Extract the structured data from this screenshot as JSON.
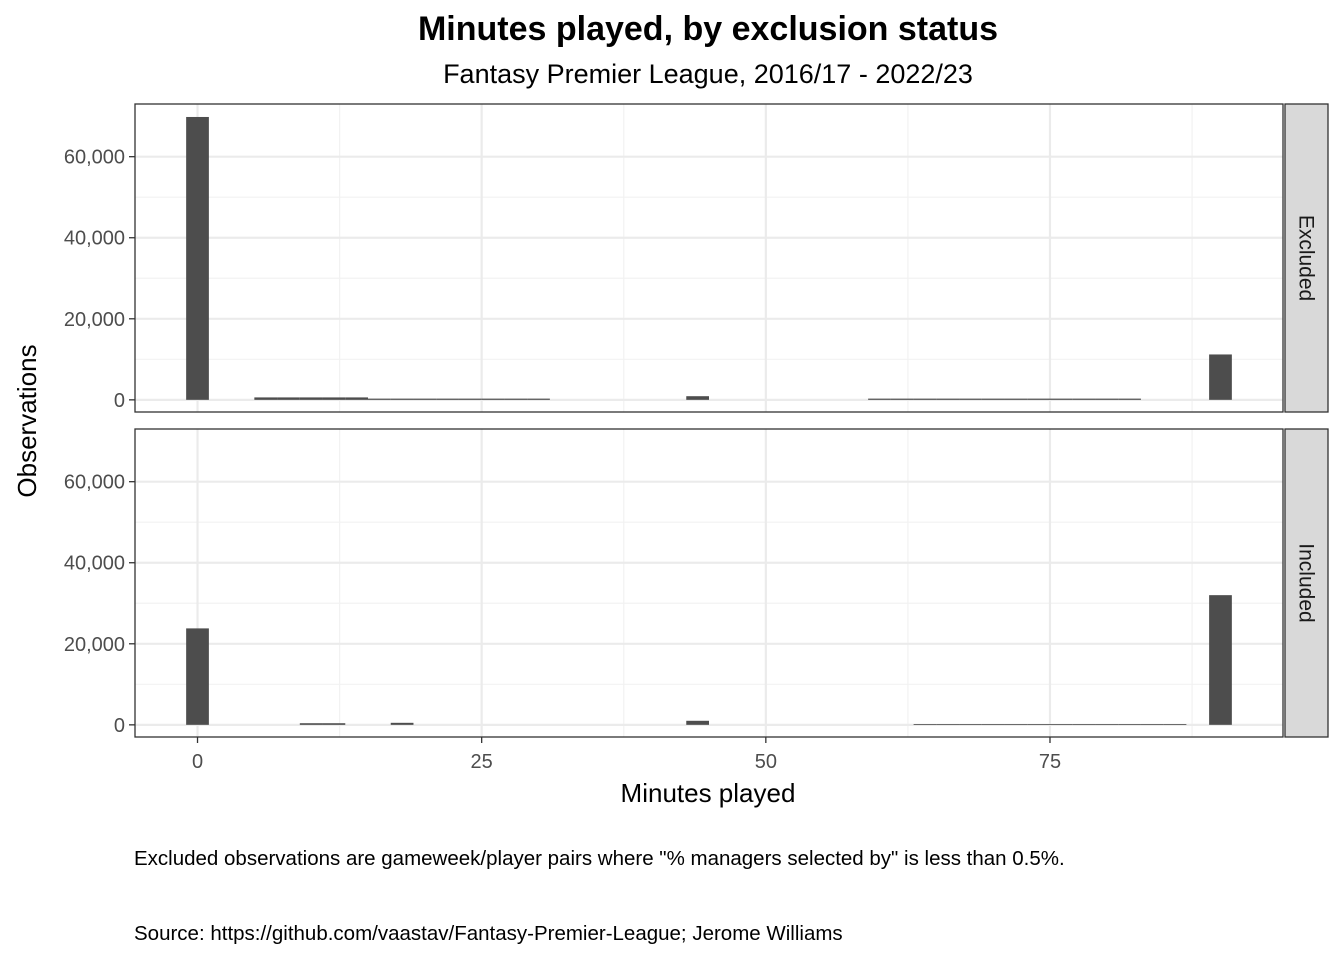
{
  "chart_data": {
    "type": "bar",
    "title": "Minutes played, by exclusion status",
    "subtitle": "Fantasy Premier League, 2016/17 - 2022/23",
    "xlabel": "Minutes played",
    "ylabel": "Observations",
    "xlim": [
      -5.5,
      95.5
    ],
    "ylim": [
      -3000,
      73000
    ],
    "x_ticks": [
      0,
      25,
      50,
      75
    ],
    "x_tick_labels": [
      "0",
      "25",
      "50",
      "75"
    ],
    "y_ticks": [
      0,
      20000,
      40000,
      60000
    ],
    "y_tick_labels": [
      "0",
      "20,000",
      "40,000",
      "60,000"
    ],
    "bin_width": 2,
    "grid": true,
    "bar_color": "#4d4d4d",
    "panels": [
      {
        "label": "Excluded",
        "x": [
          0,
          6,
          8,
          10,
          12,
          14,
          16,
          18,
          20,
          22,
          24,
          26,
          28,
          30,
          44,
          60,
          62,
          64,
          66,
          68,
          70,
          72,
          74,
          76,
          78,
          80,
          82,
          90
        ],
        "y": [
          69800,
          600,
          600,
          600,
          600,
          600,
          300,
          300,
          300,
          300,
          300,
          300,
          300,
          300,
          900,
          300,
          300,
          300,
          300,
          300,
          300,
          300,
          300,
          300,
          300,
          300,
          300,
          11200
        ]
      },
      {
        "label": "Included",
        "x": [
          0,
          10,
          12,
          18,
          44,
          64,
          66,
          68,
          70,
          72,
          74,
          76,
          78,
          80,
          82,
          84,
          86,
          90
        ],
        "y": [
          23800,
          400,
          400,
          500,
          1000,
          200,
          200,
          200,
          200,
          200,
          200,
          200,
          200,
          200,
          200,
          200,
          200,
          32000
        ]
      }
    ],
    "caption_note": "Excluded observations are gameweek/player pairs where \"% managers selected by\" is less than 0.5%.",
    "caption_source": "Source: https://github.com/vaastav/Fantasy-Premier-League; Jerome Williams"
  }
}
